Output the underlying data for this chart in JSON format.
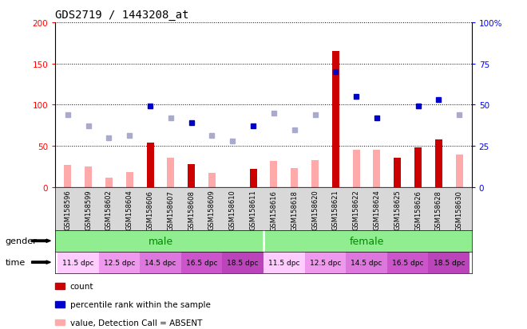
{
  "title": "GDS2719 / 1443208_at",
  "samples": [
    "GSM158596",
    "GSM158599",
    "GSM158602",
    "GSM158604",
    "GSM158606",
    "GSM158607",
    "GSM158608",
    "GSM158609",
    "GSM158610",
    "GSM158611",
    "GSM158616",
    "GSM158618",
    "GSM158620",
    "GSM158621",
    "GSM158622",
    "GSM158624",
    "GSM158625",
    "GSM158626",
    "GSM158628",
    "GSM158630"
  ],
  "count_values": [
    0,
    0,
    0,
    0,
    54,
    0,
    28,
    0,
    0,
    22,
    0,
    0,
    0,
    165,
    0,
    0,
    36,
    48,
    58,
    0
  ],
  "value_absent": [
    27,
    25,
    12,
    18,
    0,
    36,
    0,
    17,
    0,
    0,
    32,
    23,
    33,
    0,
    45,
    45,
    0,
    0,
    0,
    40
  ],
  "rank_absent_pct": [
    44,
    37,
    30,
    31.5,
    0,
    42,
    0,
    31.5,
    28,
    0,
    45,
    35,
    44,
    0,
    0,
    0,
    0,
    0,
    0,
    44
  ],
  "percentile_dark_pct": [
    0,
    0,
    0,
    0,
    49.5,
    0,
    39,
    0,
    0,
    37,
    0,
    0,
    0,
    70,
    55,
    42,
    0,
    49.5,
    53,
    0
  ],
  "color_count": "#cc0000",
  "color_value_absent": "#ffaaaa",
  "color_rank_absent": "#aaaacc",
  "color_percentile": "#0000cc",
  "ylim_left": [
    0,
    200
  ],
  "yticks_left": [
    0,
    50,
    100,
    150,
    200
  ],
  "ylim_right": [
    0,
    100
  ],
  "yticks_right": [
    0,
    25,
    50,
    75,
    100
  ],
  "gender_label_color": "#008800",
  "male_color": "#90ee90",
  "female_color": "#90ee90",
  "time_colors": [
    "#ffccff",
    "#ee99ee",
    "#dd77dd",
    "#cc55cc",
    "#bb44bb"
  ],
  "time_labels": [
    "11.5 dpc",
    "12.5 dpc",
    "14.5 dpc",
    "16.5 dpc",
    "18.5 dpc"
  ]
}
